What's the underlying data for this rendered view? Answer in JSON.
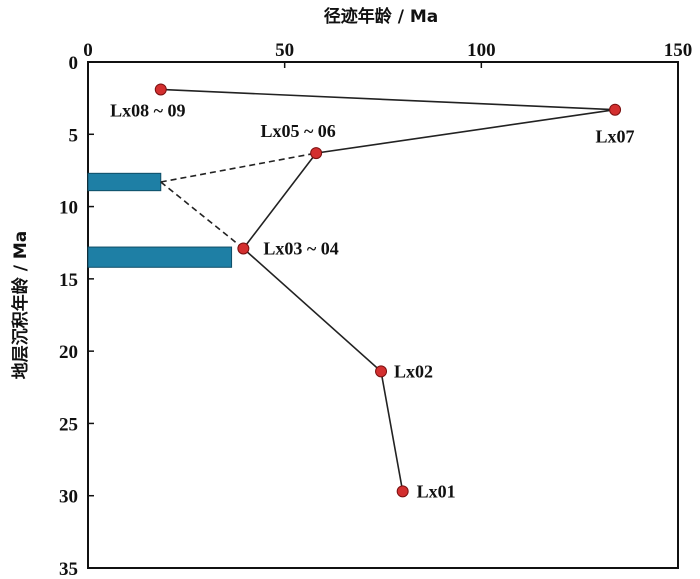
{
  "chart_data": {
    "type": "scatter",
    "xlabel": "径迹年龄 / Ma",
    "ylabel": "地层沉积年龄 / Ma",
    "xlim": [
      0,
      150
    ],
    "ylim": [
      0,
      35
    ],
    "x_ticks": [
      0,
      50,
      100,
      150
    ],
    "y_ticks": [
      0,
      5,
      10,
      15,
      20,
      25,
      30,
      35
    ],
    "y_inverted": true,
    "x_axis_position": "top",
    "grid": false,
    "points": [
      {
        "label": "Lx01",
        "x": 80,
        "y": 29.7,
        "color": "#d32f2f"
      },
      {
        "label": "Lx02",
        "x": 74.5,
        "y": 21.4,
        "color": "#d32f2f"
      },
      {
        "label": "Lx03 ~ 04",
        "x": 39.5,
        "y": 12.9,
        "color": "#d32f2f"
      },
      {
        "label": "Lx05 ~ 06",
        "x": 58,
        "y": 6.3,
        "color": "#d32f2f"
      },
      {
        "label": "Lx07",
        "x": 134,
        "y": 3.3,
        "color": "#d32f2f"
      },
      {
        "label": "Lx08 ~ 09",
        "x": 18.5,
        "y": 1.9,
        "color": "#d32f2f"
      }
    ],
    "solid_path": [
      "Lx01",
      "Lx02",
      "Lx03 ~ 04",
      "Lx05 ~ 06",
      "Lx07",
      "Lx08 ~ 09"
    ],
    "bars": [
      {
        "y_from": 7.7,
        "y_to": 8.9,
        "x_from": 0,
        "x_to": 18.5,
        "color": "#1e7fa5"
      },
      {
        "y_from": 12.8,
        "y_to": 14.2,
        "x_from": 0,
        "x_to": 36.5,
        "color": "#1e7fa5"
      }
    ],
    "dashed_lines": [
      {
        "from": [
          18.5,
          8.3
        ],
        "to": [
          58,
          6.3
        ]
      },
      {
        "from": [
          18.5,
          8.3
        ],
        "to": [
          39.5,
          12.9
        ]
      }
    ]
  }
}
